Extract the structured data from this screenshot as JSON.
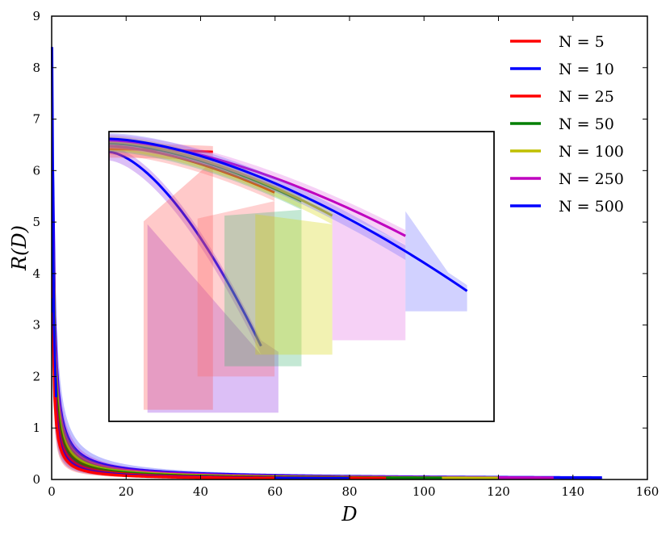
{
  "chart_data": {
    "type": "line",
    "xlabel": "D",
    "ylabel": "R(D)",
    "xlim": [
      0,
      160
    ],
    "ylim": [
      0,
      9
    ],
    "x_ticks": [
      "0",
      "20",
      "40",
      "60",
      "80",
      "100",
      "120",
      "140",
      "160"
    ],
    "y_ticks": [
      "0",
      "1",
      "2",
      "3",
      "4",
      "5",
      "6",
      "7",
      "8",
      "9"
    ],
    "legend_position": "top-right",
    "series": [
      {
        "name": "N = 5",
        "color": "#ff0000",
        "end_x": 43,
        "tail_x": 60,
        "min_y": 1.0
      },
      {
        "name": "N = 10",
        "color": "#0000ff",
        "end_x": 56,
        "tail_x": 80,
        "min_y": 1.1
      },
      {
        "name": "N = 25",
        "color": "#ff0000",
        "end_x": 60,
        "tail_x": 90,
        "min_y": 1.25
      },
      {
        "name": "N = 50",
        "color": "#007f00",
        "end_x": 68,
        "tail_x": 105,
        "min_y": 1.45
      },
      {
        "name": "N = 100",
        "color": "#bfbf00",
        "end_x": 77,
        "tail_x": 120,
        "min_y": 1.6
      },
      {
        "name": "N = 250",
        "color": "#bf00bf",
        "end_x": 96,
        "tail_x": 135,
        "min_y": 1.8
      },
      {
        "name": "N = 500",
        "color": "#0000ff",
        "end_x": 111,
        "tail_x": 148,
        "min_y": 2.0
      }
    ],
    "inset": {
      "description_of_content": "zoomed view of the same seven curves with shaded spread bands; no tick labels",
      "curves": [
        {
          "series": "N = 10",
          "color": "#0000ff",
          "band": "#8a2be2",
          "start": [
            0.0,
            0.93
          ],
          "end": [
            0.395,
            0.26
          ],
          "band_floor": 0.97,
          "band_x": [
            0.1,
            0.44
          ]
        },
        {
          "series": "N = 5",
          "color": "#ff0000",
          "band": "#ff4d4d",
          "start": [
            0.0,
            0.94
          ],
          "end": [
            0.27,
            0.93
          ],
          "band_floor": 0.96,
          "band_x": [
            0.09,
            0.27
          ]
        },
        {
          "series": "N = 25",
          "color": "#ff0000",
          "band": "#ff6666",
          "start": [
            0.0,
            0.95
          ],
          "end": [
            0.43,
            0.79
          ],
          "band_floor": 0.845,
          "band_x": [
            0.23,
            0.43
          ]
        },
        {
          "series": "N = 50",
          "color": "#007f00",
          "band": "#3cb371",
          "start": [
            0.0,
            0.96
          ],
          "end": [
            0.5,
            0.76
          ],
          "band_floor": 0.81,
          "band_x": [
            0.3,
            0.5
          ]
        },
        {
          "series": "N = 100",
          "color": "#bfbf00",
          "band": "#d4d400",
          "start": [
            0.0,
            0.965
          ],
          "end": [
            0.58,
            0.71
          ],
          "band_floor": 0.77,
          "band_x": [
            0.38,
            0.58
          ]
        },
        {
          "series": "N = 250",
          "color": "#bf00bf",
          "band": "#e066e0",
          "start": [
            0.0,
            0.97
          ],
          "end": [
            0.77,
            0.64
          ],
          "band_floor": 0.72,
          "band_x": [
            0.58,
            0.77
          ]
        },
        {
          "series": "N = 500",
          "color": "#0000ff",
          "band": "#6666ff",
          "start": [
            0.0,
            0.975
          ],
          "end": [
            0.93,
            0.45
          ],
          "band_floor": 0.62,
          "band_x": [
            0.77,
            0.93
          ]
        }
      ]
    }
  }
}
